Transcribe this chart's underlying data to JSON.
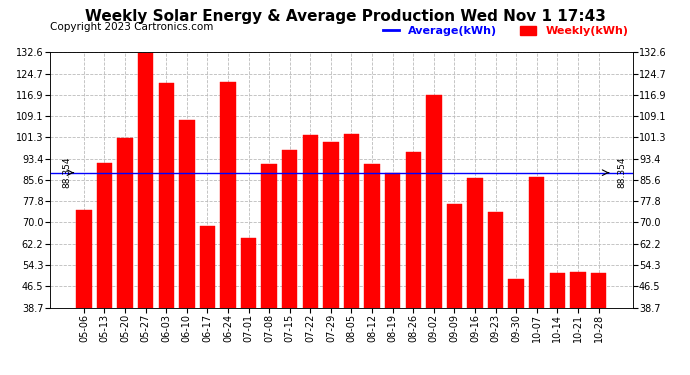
{
  "title": "Weekly Solar Energy & Average Production Wed Nov 1 17:43",
  "copyright": "Copyright 2023 Cartronics.com",
  "categories": [
    "05-06",
    "05-13",
    "05-20",
    "05-27",
    "06-03",
    "06-10",
    "06-17",
    "06-24",
    "07-01",
    "07-08",
    "07-15",
    "07-22",
    "07-29",
    "08-05",
    "08-12",
    "08-19",
    "08-26",
    "09-02",
    "09-09",
    "09-16",
    "09-23",
    "09-30",
    "10-07",
    "10-14",
    "10-21",
    "10-28"
  ],
  "values": [
    74.568,
    91.816,
    101.064,
    132.552,
    121.392,
    107.884,
    68.772,
    121.84,
    64.224,
    91.448,
    96.76,
    102.216,
    99.552,
    102.768,
    91.584,
    88.34,
    95.892,
    116.856,
    76.932,
    86.544,
    73.976,
    49.128,
    86.868,
    51.556,
    51.692,
    51.476
  ],
  "average": 88.354,
  "bar_color": "#ff0000",
  "average_color": "#0000ff",
  "background_color": "#ffffff",
  "grid_color": "#bbbbbb",
  "yticks": [
    38.7,
    46.5,
    54.3,
    62.2,
    70.0,
    77.8,
    85.6,
    93.4,
    101.3,
    109.1,
    116.9,
    124.7,
    132.6
  ],
  "legend_average": "Average(kWh)",
  "legend_weekly": "Weekly(kWh)",
  "average_label": "88.354",
  "title_fontsize": 11,
  "tick_fontsize": 7,
  "label_fontsize": 5.5,
  "copyright_fontsize": 7.5
}
